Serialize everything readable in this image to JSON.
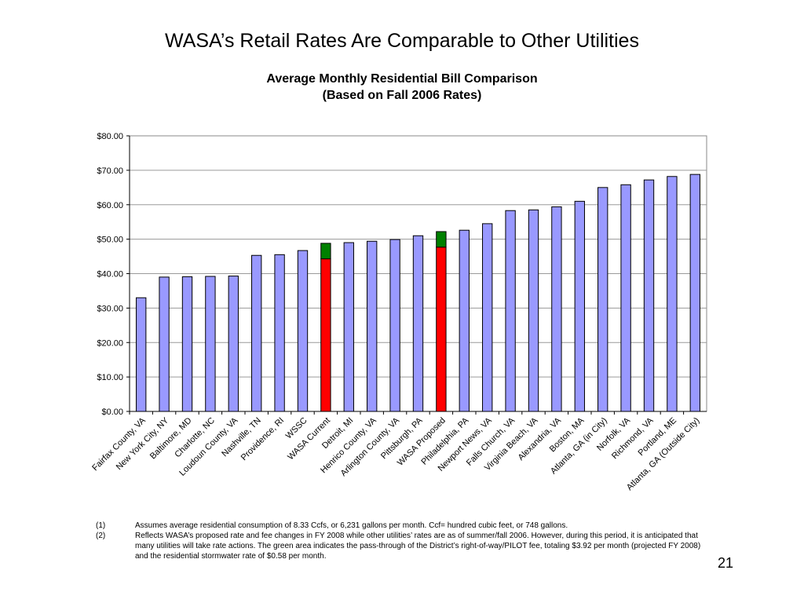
{
  "slide": {
    "title": "WASA’s Retail Rates Are Comparable to Other Utilities",
    "page_number": "21"
  },
  "chart_data": {
    "type": "bar",
    "title": "Average Monthly Residential Bill Comparison",
    "subtitle": "(Based on Fall 2006 Rates)",
    "xlabel": "",
    "ylabel": "",
    "ylim": [
      0,
      80
    ],
    "yticks": [
      "$0.00",
      "$10.00",
      "$20.00",
      "$30.00",
      "$40.00",
      "$50.00",
      "$60.00",
      "$70.00",
      "$80.00"
    ],
    "grid": true,
    "stacked": true,
    "categories": [
      "Fairfax County, VA",
      "New York City, NY",
      "Baltimore, MD",
      "Charlotte, NC",
      "Loudoun County, VA",
      "Nashville, TN",
      "Providence, RI",
      "WSSC",
      "WASA Current",
      "Detroit, MI",
      "Henrico County, VA",
      "Arlington County, VA",
      "Pittsburgh, PA",
      "WASA Proposed",
      "Philadelphia, PA",
      "Newport News, VA",
      "Falls Church, VA",
      "Virginia Beach, VA",
      "Alexandria, VA",
      "Boston, MA",
      "Atlanta, GA (in City)",
      "Norfolk, VA",
      "Richmond, VA",
      "Portland, ME",
      "Atlanta, GA (Outside City)"
    ],
    "series": [
      {
        "values": [
          33.0,
          39.0,
          39.1,
          39.2,
          39.3,
          45.3,
          45.5,
          46.7,
          0,
          49.0,
          49.4,
          49.9,
          51.0,
          0,
          52.6,
          54.5,
          58.3,
          58.5,
          59.4,
          61.0,
          65.0,
          65.8,
          67.2,
          68.2,
          68.8
        ],
        "color": "#9999ff"
      },
      {
        "values": [
          0,
          0,
          0,
          0,
          0,
          0,
          0,
          0,
          44.3,
          0,
          0,
          0,
          0,
          47.7,
          0,
          0,
          0,
          0,
          0,
          0,
          0,
          0,
          0,
          0,
          0
        ],
        "color": "#ff0000"
      },
      {
        "values": [
          0,
          0,
          0,
          0,
          0,
          0,
          0,
          0,
          4.5,
          0,
          0,
          0,
          0,
          4.5,
          0,
          0,
          0,
          0,
          0,
          0,
          0,
          0,
          0,
          0,
          0
        ],
        "color": "#008000"
      }
    ]
  },
  "footnotes": [
    {
      "num": "(1)",
      "text": "Assumes average residential consumption of 8.33 Ccfs, or 6,231 gallons per month. Ccf= hundred cubic feet, or 748 gallons."
    },
    {
      "num": "(2)",
      "text": "Reflects WASA’s proposed rate and fee changes in FY 2008 while other utilities’ rates are as of summer/fall 2006.  However, during this period, it is anticipated that many utilities will take rate actions.  The green area indicates the pass-through of the District’s right-of-way/PILOT fee, totaling $3.92 per month (projected FY 2008) and the residential stormwater rate of $0.58 per month."
    }
  ]
}
